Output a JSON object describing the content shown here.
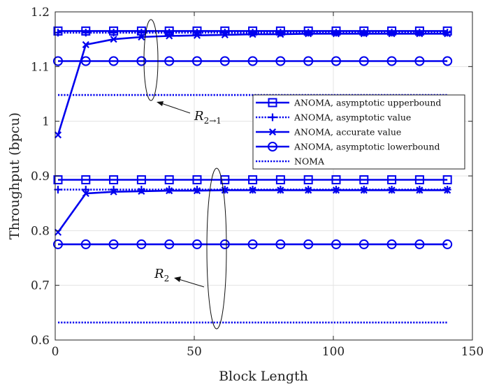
{
  "chart_data": {
    "type": "line",
    "xlabel": "Block Length",
    "ylabel": "Throughput (bpcu)",
    "xlim": [
      0,
      150
    ],
    "ylim": [
      0.6,
      1.2
    ],
    "xticks": [
      0,
      50,
      100,
      150
    ],
    "yticks": [
      0.6,
      0.7,
      0.8,
      0.9,
      1.0,
      1.1,
      1.2
    ],
    "xtick_labels": [
      "0",
      "50",
      "100",
      "150"
    ],
    "ytick_labels": [
      "0.6",
      "0.7",
      "0.8",
      "0.9",
      "1",
      "1.1",
      "1.2"
    ],
    "grid": true,
    "legend_position": "right",
    "color": "#0000ee",
    "x": [
      1,
      11,
      21,
      31,
      41,
      51,
      61,
      71,
      81,
      91,
      101,
      111,
      121,
      131,
      141
    ],
    "legend": [
      {
        "label": "ANOMA, asymptotic upperbound",
        "style": "solid",
        "marker": "square"
      },
      {
        "label": "ANOMA, asymptotic value",
        "style": "dotted",
        "marker": "plus"
      },
      {
        "label": "ANOMA, accurate value",
        "style": "solid",
        "marker": "x"
      },
      {
        "label": "ANOMA, asymptotic lowerbound",
        "style": "solid",
        "marker": "circle"
      },
      {
        "label": "NOMA",
        "style": "dotted",
        "marker": "none"
      }
    ],
    "groups": [
      {
        "annotation": {
          "main": "R",
          "sub": "2→1"
        },
        "series": [
          {
            "legend_index": 0,
            "values": [
              1.165,
              1.165,
              1.165,
              1.165,
              1.165,
              1.165,
              1.165,
              1.165,
              1.165,
              1.165,
              1.165,
              1.165,
              1.165,
              1.165,
              1.165
            ]
          },
          {
            "legend_index": 1,
            "values": [
              1.162,
              1.162,
              1.162,
              1.162,
              1.162,
              1.162,
              1.162,
              1.162,
              1.162,
              1.162,
              1.162,
              1.162,
              1.162,
              1.162,
              1.162
            ]
          },
          {
            "legend_index": 2,
            "values": [
              0.975,
              1.14,
              1.15,
              1.154,
              1.156,
              1.157,
              1.158,
              1.159,
              1.159,
              1.16,
              1.16,
              1.16,
              1.16,
              1.16,
              1.16
            ]
          },
          {
            "legend_index": 3,
            "values": [
              1.11,
              1.11,
              1.11,
              1.11,
              1.11,
              1.11,
              1.11,
              1.11,
              1.11,
              1.11,
              1.11,
              1.11,
              1.11,
              1.11,
              1.11
            ]
          },
          {
            "legend_index": 4,
            "x_range": [
              1,
              141
            ],
            "value": 1.048
          }
        ]
      },
      {
        "annotation": {
          "main": "R",
          "sub": "2"
        },
        "series": [
          {
            "legend_index": 0,
            "values": [
              0.893,
              0.893,
              0.893,
              0.893,
              0.893,
              0.893,
              0.893,
              0.893,
              0.893,
              0.893,
              0.893,
              0.893,
              0.893,
              0.893,
              0.893
            ]
          },
          {
            "legend_index": 1,
            "values": [
              0.875,
              0.875,
              0.875,
              0.875,
              0.875,
              0.875,
              0.875,
              0.875,
              0.875,
              0.875,
              0.875,
              0.875,
              0.875,
              0.875,
              0.875
            ]
          },
          {
            "legend_index": 2,
            "values": [
              0.797,
              0.868,
              0.871,
              0.872,
              0.873,
              0.873,
              0.874,
              0.874,
              0.874,
              0.874,
              0.874,
              0.874,
              0.874,
              0.874,
              0.874
            ]
          },
          {
            "legend_index": 3,
            "values": [
              0.775,
              0.775,
              0.775,
              0.775,
              0.775,
              0.775,
              0.775,
              0.775,
              0.775,
              0.775,
              0.775,
              0.775,
              0.775,
              0.775,
              0.775
            ]
          },
          {
            "legend_index": 4,
            "x_range": [
              1,
              141
            ],
            "value": 0.632
          }
        ]
      }
    ]
  }
}
